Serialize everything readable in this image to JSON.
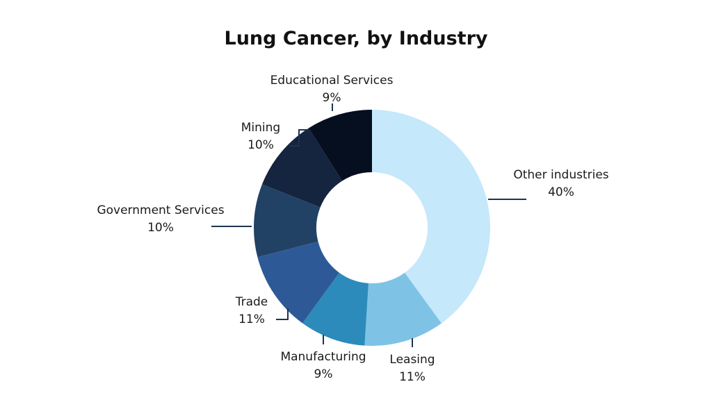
{
  "chart_data": {
    "type": "pie",
    "title": "Lung Cancer, by Industry",
    "donut": true,
    "legend": "none",
    "slices": [
      {
        "label": "Other industries",
        "value": 40,
        "pct_label": "40%",
        "color": "#c5e8fb"
      },
      {
        "label": "Leasing",
        "value": 11,
        "pct_label": "11%",
        "color": "#7ec3e5"
      },
      {
        "label": "Manufacturing",
        "value": 9,
        "pct_label": "9%",
        "color": "#2c8bbb"
      },
      {
        "label": "Trade",
        "value": 11,
        "pct_label": "11%",
        "color": "#2d5a97"
      },
      {
        "label": "Government Services",
        "value": 10,
        "pct_label": "10%",
        "color": "#224265"
      },
      {
        "label": "Mining",
        "value": 10,
        "pct_label": "10%",
        "color": "#15243f"
      },
      {
        "label": "Educational Services",
        "value": 9,
        "pct_label": "9%",
        "color": "#050f20"
      }
    ],
    "leader_color": "#1d3350"
  }
}
